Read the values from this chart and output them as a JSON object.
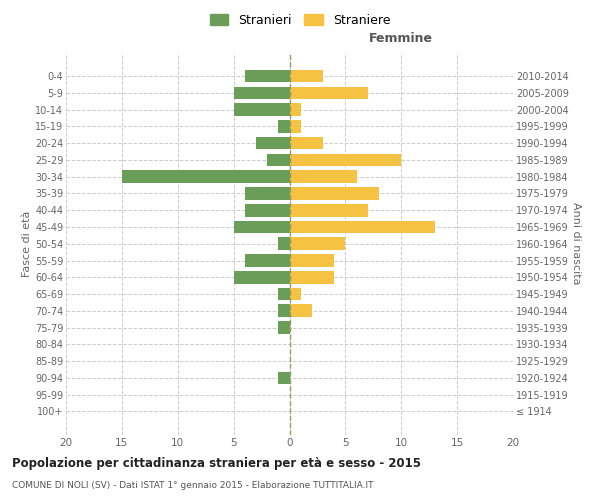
{
  "age_groups": [
    "100+",
    "95-99",
    "90-94",
    "85-89",
    "80-84",
    "75-79",
    "70-74",
    "65-69",
    "60-64",
    "55-59",
    "50-54",
    "45-49",
    "40-44",
    "35-39",
    "30-34",
    "25-29",
    "20-24",
    "15-19",
    "10-14",
    "5-9",
    "0-4"
  ],
  "birth_years": [
    "≤ 1914",
    "1915-1919",
    "1920-1924",
    "1925-1929",
    "1930-1934",
    "1935-1939",
    "1940-1944",
    "1945-1949",
    "1950-1954",
    "1955-1959",
    "1960-1964",
    "1965-1969",
    "1970-1974",
    "1975-1979",
    "1980-1984",
    "1985-1989",
    "1990-1994",
    "1995-1999",
    "2000-2004",
    "2005-2009",
    "2010-2014"
  ],
  "males": [
    0,
    0,
    1,
    0,
    0,
    1,
    1,
    1,
    5,
    4,
    1,
    5,
    4,
    4,
    15,
    2,
    3,
    1,
    5,
    5,
    4
  ],
  "females": [
    0,
    0,
    0,
    0,
    0,
    0,
    2,
    1,
    4,
    4,
    5,
    13,
    7,
    8,
    6,
    10,
    3,
    1,
    1,
    7,
    3
  ],
  "male_color": "#6a9e58",
  "female_color": "#f5c242",
  "title": "Popolazione per cittadinanza straniera per età e sesso - 2015",
  "subtitle": "COMUNE DI NOLI (SV) - Dati ISTAT 1° gennaio 2015 - Elaborazione TUTTITALIA.IT",
  "xlabel_right": "Femmine",
  "ylabel_left": "Fasce di età",
  "ylabel_right": "Anni di nascita",
  "xlim": 20,
  "legend_stranieri": "Stranieri",
  "legend_straniere": "Straniere",
  "bg_color": "#ffffff",
  "grid_color": "#cccccc",
  "bar_height": 0.75
}
